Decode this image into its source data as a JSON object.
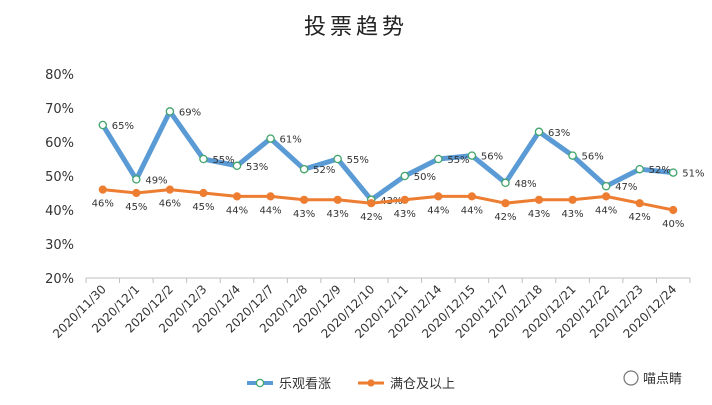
{
  "watermark": "喵点睛",
  "chart_data": {
    "type": "line",
    "title": "投票趋势",
    "xlabel": "",
    "ylabel": "",
    "ylim": [
      20,
      80
    ],
    "yticks": [
      "20%",
      "30%",
      "40%",
      "50%",
      "60%",
      "70%",
      "80%"
    ],
    "grid": false,
    "legend": "bottom",
    "categories": [
      "2020/11/30",
      "2020/12/1",
      "2020/12/2",
      "2020/12/3",
      "2020/12/4",
      "2020/12/7",
      "2020/12/8",
      "2020/12/9",
      "2020/12/10",
      "2020/12/11",
      "2020/12/14",
      "2020/12/15",
      "2020/12/17",
      "2020/12/18",
      "2020/12/21",
      "2020/12/22",
      "2020/12/23",
      "2020/12/24"
    ],
    "series": [
      {
        "name": "乐观看涨",
        "color": "#5b9bd5",
        "values": [
          65,
          49,
          69,
          55,
          53,
          61,
          52,
          55,
          43,
          50,
          55,
          56,
          48,
          63,
          56,
          47,
          52,
          51
        ],
        "labels": [
          "65%",
          "49%",
          "69%",
          "55%",
          "53%",
          "61%",
          "52%",
          "55%",
          "43%",
          "50%",
          "55%",
          "56%",
          "48%",
          "63%",
          "56%",
          "47%",
          "52%",
          "51%"
        ]
      },
      {
        "name": "满仓及以上",
        "color": "#ed7d31",
        "values": [
          46,
          45,
          46,
          45,
          44,
          44,
          43,
          43,
          42,
          43,
          44,
          44,
          42,
          43,
          43,
          44,
          42,
          40
        ],
        "labels": [
          "46%",
          "45%",
          "46%",
          "45%",
          "44%",
          "44%",
          "43%",
          "43%",
          "42%",
          "43%",
          "44%",
          "44%",
          "42%",
          "43%",
          "43%",
          "44%",
          "42%",
          "40%"
        ]
      }
    ]
  }
}
